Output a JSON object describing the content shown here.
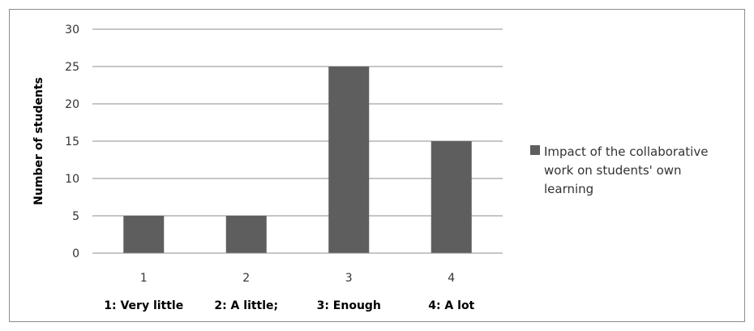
{
  "chart_data": {
    "type": "bar",
    "categories": [
      "1",
      "2",
      "3",
      "4"
    ],
    "category_labels": [
      "1: Very little",
      "2: A little;",
      "3: Enough",
      "4: A lot"
    ],
    "series": [
      {
        "name": "Impact of the collaborative work on students' own learning",
        "name_lines": [
          "Impact of the collaborative",
          "work on students' own",
          "learning"
        ],
        "values": [
          5,
          5,
          25,
          15
        ],
        "color": "#5e5e5e"
      }
    ],
    "title": "",
    "xlabel": "",
    "ylabel": "Number of students",
    "ylim": [
      0,
      30
    ],
    "yticks": [
      0,
      5,
      10,
      15,
      20,
      25,
      30
    ],
    "grid": true,
    "legend": "right"
  }
}
